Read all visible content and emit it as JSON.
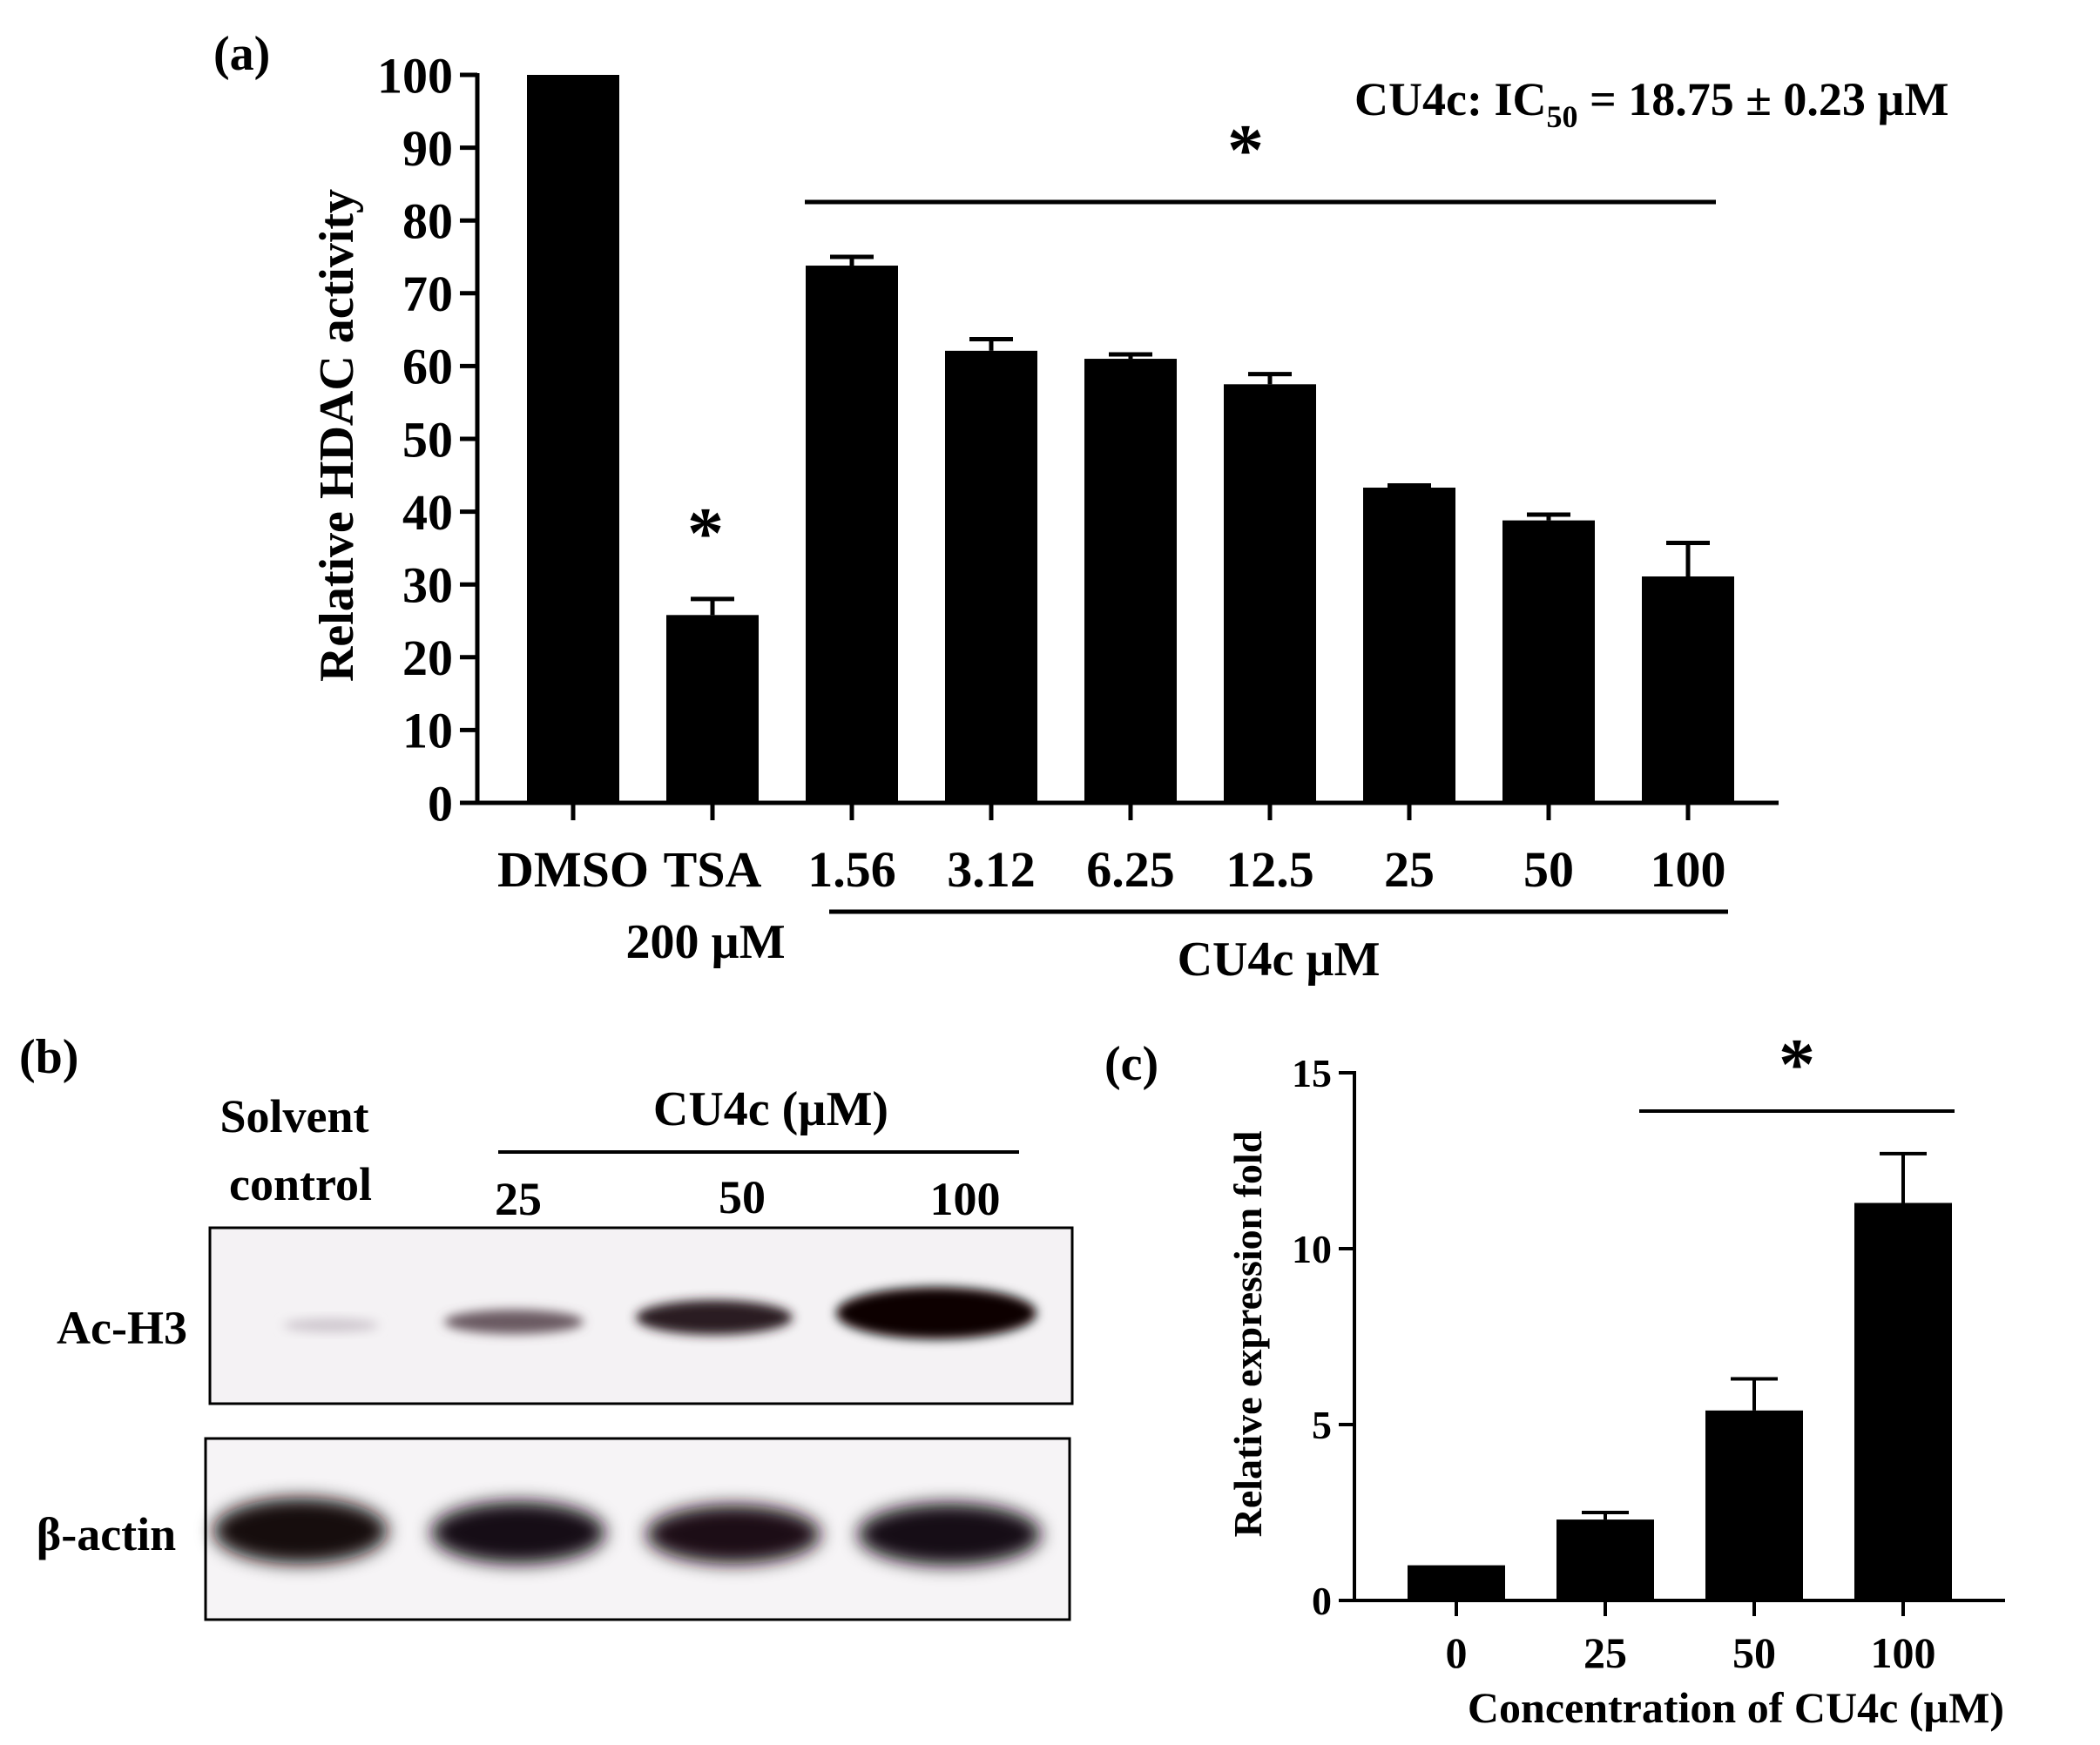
{
  "panel_a": {
    "label": "(a)",
    "ic50_prefix": "CU4c: IC",
    "ic50_sub": "50",
    "ic50_value": " = 18.75 ± 0.23 µM",
    "sig_marker": "*",
    "tsa_sig_marker": "*",
    "group_label_tsa": "200 µM",
    "group_label_cu4c": "CU4c µM"
  },
  "panel_b": {
    "label": "(b)",
    "solvent_line1": "Solvent",
    "solvent_line2": "control",
    "cu4c_header": "CU4c (µM)",
    "lanes": [
      "25",
      "50",
      "100"
    ],
    "row1_label": "Ac-H3",
    "row2_label": "β-actin"
  },
  "panel_c": {
    "label": "(c)",
    "sig_marker": "*"
  },
  "chart_data": [
    {
      "type": "bar",
      "categories": [
        "DMSO",
        "TSA",
        "1.56",
        "3.12",
        "6.25",
        "12.5",
        "25",
        "50",
        "100"
      ],
      "values": [
        100,
        25.8,
        73.8,
        62.1,
        61.0,
        57.5,
        43.3,
        38.8,
        31.1
      ],
      "errors": [
        0,
        2.2,
        1.2,
        1.6,
        0.6,
        1.4,
        0.3,
        0.8,
        4.6
      ],
      "xlabel": "",
      "ylabel": "Relative HDAC activity",
      "ylim": [
        0,
        100
      ],
      "yticks": [
        0,
        10,
        20,
        30,
        40,
        50,
        60,
        70,
        80,
        90,
        100
      ],
      "color": "#000000"
    },
    {
      "type": "bar",
      "categories": [
        "0",
        "25",
        "50",
        "100"
      ],
      "values": [
        1.0,
        2.3,
        5.4,
        11.3
      ],
      "errors": [
        0,
        0.2,
        0.9,
        1.4
      ],
      "xlabel": "Concentration of CU4c (µM)",
      "ylabel": "Relative expression fold",
      "ylim": [
        0,
        15
      ],
      "yticks": [
        0,
        5,
        10,
        15
      ],
      "color": "#000000"
    }
  ]
}
